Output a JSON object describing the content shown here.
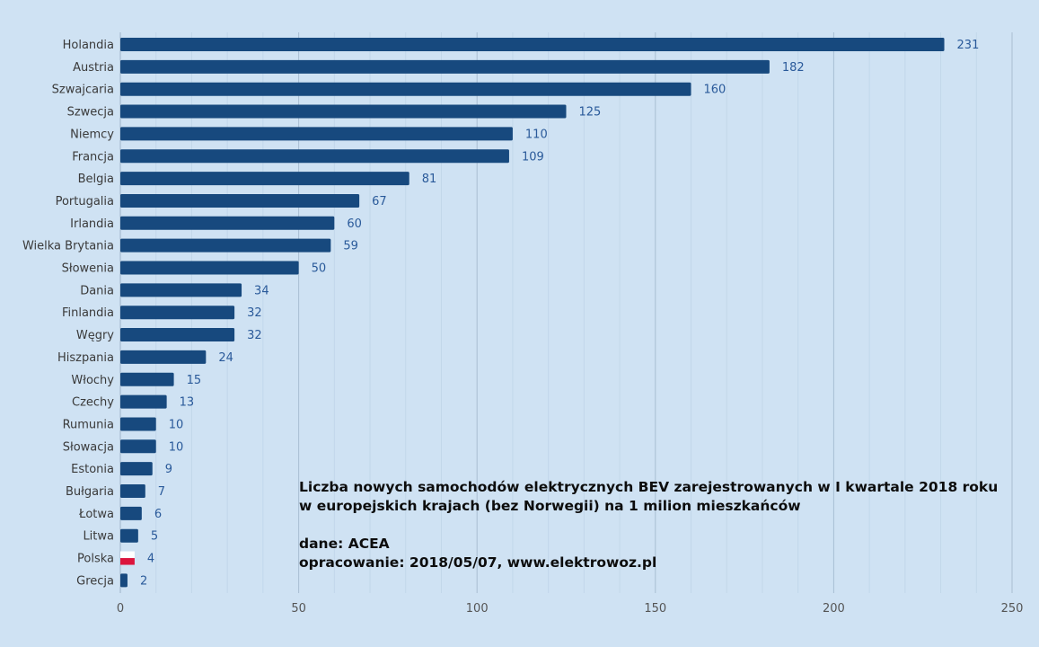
{
  "note": {
    "line1": "Liczba nowych samochodów elektrycznych BEV zarejestrowanych w I kwartale 2018 roku",
    "line2": "w europejskich krajach (bez Norwegii) na 1 milion mieszkańców",
    "source": "dane: ACEA",
    "author": "opracowanie: 2018/05/07, www.elektrowoz.pl"
  },
  "colors": {
    "bar": "#17497e",
    "flag_white": "#ffffff",
    "flag_red": "#dc143c",
    "background": "#cfe2f3"
  },
  "chart_data": {
    "type": "bar",
    "orientation": "horizontal",
    "categories": [
      "Holandia",
      "Austria",
      "Szwajcaria",
      "Szwecja",
      "Niemcy",
      "Francja",
      "Belgia",
      "Portugalia",
      "Irlandia",
      "Wielka Brytania",
      "Słowenia",
      "Dania",
      "Finlandia",
      "Węgry",
      "Hiszpania",
      "Włochy",
      "Czechy",
      "Rumunia",
      "Słowacja",
      "Estonia",
      "Bułgaria",
      "Łotwa",
      "Litwa",
      "Polska",
      "Grecja"
    ],
    "values": [
      231,
      182,
      160,
      125,
      110,
      109,
      81,
      67,
      60,
      59,
      50,
      34,
      32,
      32,
      24,
      15,
      13,
      10,
      10,
      9,
      7,
      6,
      5,
      4,
      2
    ],
    "xlim": [
      0,
      250
    ],
    "xticks": [
      0,
      50,
      100,
      150,
      200,
      250
    ],
    "grid": true,
    "highlight": "Polska",
    "title": "",
    "xlabel": "",
    "ylabel": ""
  }
}
